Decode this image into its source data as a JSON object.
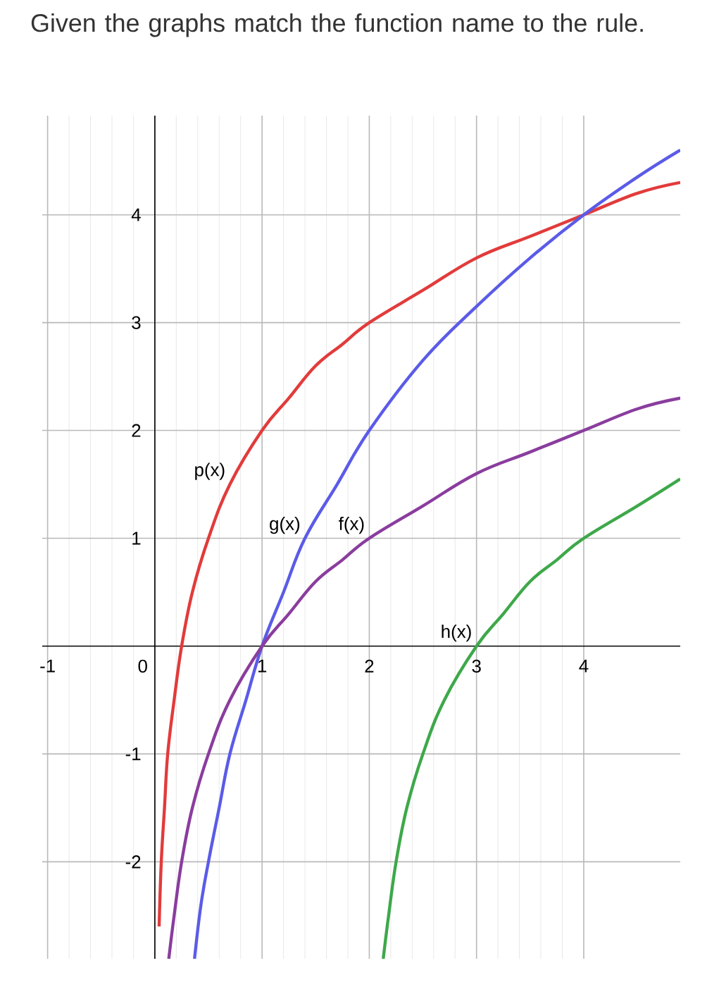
{
  "chart_data": {
    "type": "line",
    "title": "Given the graphs match the function name to the rule.",
    "xlim": [
      -1.05,
      4.9
    ],
    "ylim": [
      -2.9,
      4.92
    ],
    "xticks": [
      -1,
      0,
      1,
      2,
      3,
      4
    ],
    "yticks": [
      -2,
      -1,
      1,
      2,
      3,
      4
    ],
    "grid": true,
    "marker": "none",
    "line_style": "solid",
    "series": [
      {
        "name": "p(x)",
        "color": "#e23b3b",
        "x": [
          0.04,
          0.06,
          0.09,
          0.12,
          0.18,
          0.25,
          0.35,
          0.5,
          0.7,
          1,
          1.25,
          1.5,
          1.75,
          2,
          2.5,
          3,
          3.5,
          4,
          4.5,
          4.9
        ],
        "values": [
          -2.6,
          -2.0,
          -1.5,
          -1.0,
          -0.5,
          0,
          0.5,
          1,
          1.5,
          2,
          2.3,
          2.6,
          2.8,
          3,
          3.3,
          3.6,
          3.8,
          4,
          4.2,
          4.3
        ]
      },
      {
        "name": "g(x)",
        "color": "#5b5be8",
        "x": [
          0.37,
          0.43,
          0.5,
          0.6,
          0.7,
          0.85,
          1,
          1.2,
          1.4,
          1.7,
          2,
          2.5,
          3,
          3.5,
          4,
          4.5,
          4.9
        ],
        "values": [
          -2.9,
          -2.4,
          -2.0,
          -1.5,
          -1.0,
          -0.5,
          0,
          0.5,
          1,
          1.5,
          2,
          2.65,
          3.15,
          3.6,
          4,
          4.35,
          4.6
        ]
      },
      {
        "name": "f(x)",
        "color": "#8a3d9e",
        "x": [
          0.13,
          0.18,
          0.25,
          0.35,
          0.5,
          0.7,
          1,
          1.25,
          1.5,
          1.75,
          2,
          2.5,
          3,
          3.5,
          4,
          4.5,
          4.9
        ],
        "values": [
          -2.9,
          -2.5,
          -2.0,
          -1.5,
          -1.0,
          -0.5,
          0,
          0.3,
          0.6,
          0.8,
          1,
          1.3,
          1.6,
          1.8,
          2,
          2.2,
          2.3
        ]
      },
      {
        "name": "h(x)",
        "color": "#3ea84a",
        "x": [
          2.13,
          2.18,
          2.25,
          2.35,
          2.5,
          2.7,
          3,
          3.25,
          3.5,
          3.75,
          4,
          4.5,
          4.9
        ],
        "values": [
          -2.9,
          -2.5,
          -2.0,
          -1.5,
          -1.0,
          -0.5,
          0,
          0.3,
          0.6,
          0.8,
          1,
          1.3,
          1.55
        ]
      }
    ]
  }
}
